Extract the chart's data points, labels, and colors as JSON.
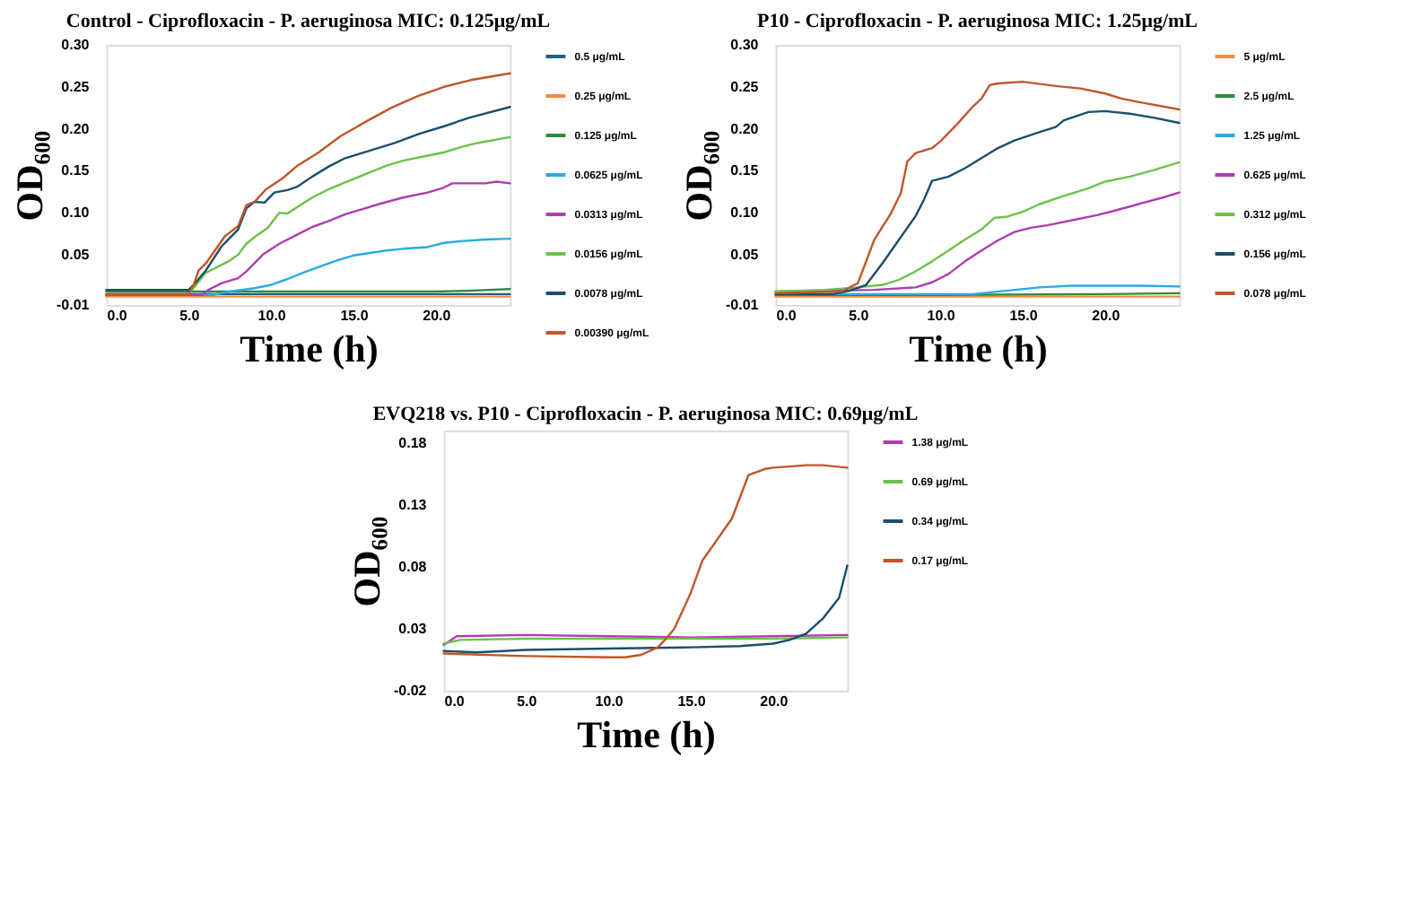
{
  "chart_data": [
    {
      "type": "line",
      "title": "Control - Ciprofloxacin - P. aeruginosa MIC: 0.125μg/mL",
      "xlabel": "Time (h)",
      "ylabel": "OD₆₀₀",
      "xlim": [
        0,
        24.5
      ],
      "ylim": [
        -0.01,
        0.3
      ],
      "xticks": [
        {
          "value": 0,
          "label": "0.0"
        },
        {
          "value": 5,
          "label": "5.0"
        },
        {
          "value": 10,
          "label": "10.0"
        },
        {
          "value": 15,
          "label": "15.0"
        },
        {
          "value": 20,
          "label": "20.0"
        }
      ],
      "yticks": [
        -0.01,
        0.05,
        {
          "value": 0.1,
          "label": "0.10"
        },
        0.15,
        {
          "value": 0.2,
          "label": "0.20"
        },
        0.25,
        {
          "value": 0.3,
          "label": "0.30"
        }
      ],
      "grid": false,
      "legend": "right",
      "line_style": "solid",
      "marker": "none",
      "series": [
        {
          "name": "0.5 μg/mL",
          "color": "#1f5f8b",
          "x": [
            0,
            10,
            20,
            24.5
          ],
          "values": [
            0.003,
            0.003,
            0.003,
            0.003
          ]
        },
        {
          "name": "0.25 μg/mL",
          "color": "#f58a42",
          "x": [
            0,
            10,
            20,
            24.5
          ],
          "values": [
            0.0,
            0.0,
            0.0,
            0.0
          ]
        },
        {
          "name": "0.125 μg/mL",
          "color": "#2e8b3e",
          "x": [
            0,
            10,
            20,
            22,
            24.5
          ],
          "values": [
            0.006,
            0.006,
            0.006,
            0.007,
            0.009
          ]
        },
        {
          "name": "0.0625 μg/mL",
          "color": "#29abe2",
          "x": [
            0,
            6.5,
            7.5,
            9,
            10,
            11,
            12,
            13,
            14,
            15,
            16,
            17,
            18,
            19.5,
            20.5,
            21.5,
            23,
            24.5
          ],
          "values": [
            0.002,
            0.002,
            0.006,
            0.01,
            0.014,
            0.021,
            0.029,
            0.036,
            0.043,
            0.049,
            0.052,
            0.055,
            0.057,
            0.059,
            0.064,
            0.066,
            0.068,
            0.069
          ]
        },
        {
          "name": "0.0313 μg/mL",
          "color": "#b03cb0",
          "x": [
            0,
            5.8,
            6.2,
            7,
            8,
            8.5,
            9.5,
            10.5,
            11.5,
            12.5,
            13.5,
            14.5,
            15.5,
            16.5,
            18,
            19.5,
            20.5,
            21,
            23,
            23.7,
            24.5
          ],
          "values": [
            0.002,
            0.002,
            0.008,
            0.016,
            0.022,
            0.03,
            0.05,
            0.063,
            0.073,
            0.083,
            0.09,
            0.098,
            0.104,
            0.11,
            0.118,
            0.124,
            0.13,
            0.135,
            0.135,
            0.137,
            0.135
          ]
        },
        {
          "name": "0.0156 μg/mL",
          "color": "#6cc24a",
          "x": [
            0,
            5,
            5.5,
            6,
            7,
            7.5,
            8,
            8.5,
            9,
            9.8,
            10.5,
            11,
            11.7,
            12.5,
            13.5,
            14.5,
            16,
            17,
            18,
            19.5,
            20.5,
            21.5,
            22.5,
            24.5
          ],
          "values": [
            0.003,
            0.003,
            0.015,
            0.028,
            0.038,
            0.043,
            0.05,
            0.063,
            0.071,
            0.082,
            0.1,
            0.099,
            0.108,
            0.118,
            0.128,
            0.136,
            0.148,
            0.156,
            0.162,
            0.168,
            0.172,
            0.178,
            0.183,
            0.19
          ]
        },
        {
          "name": "0.0078 μg/mL",
          "color": "#1d4e6b",
          "x": [
            0,
            5,
            5.3,
            6,
            7,
            8,
            8.5,
            9,
            9.6,
            10.2,
            11,
            11.6,
            12.5,
            13.5,
            14.5,
            16,
            17.5,
            19,
            20.5,
            22,
            24.5
          ],
          "values": [
            0.008,
            0.008,
            0.014,
            0.03,
            0.06,
            0.08,
            0.105,
            0.113,
            0.112,
            0.124,
            0.127,
            0.131,
            0.143,
            0.155,
            0.165,
            0.174,
            0.183,
            0.194,
            0.203,
            0.213,
            0.226
          ]
        },
        {
          "name": "0.00390 μg/mL",
          "color": "#c0562a",
          "x": [
            0,
            5,
            5.3,
            5.6,
            6.1,
            7.2,
            8,
            8.5,
            9,
            9.7,
            10.7,
            11.6,
            12.9,
            14.2,
            15.8,
            17.3,
            18.9,
            20.5,
            22.1,
            24.5
          ],
          "values": [
            0.003,
            0.003,
            0.014,
            0.031,
            0.041,
            0.072,
            0.084,
            0.109,
            0.113,
            0.128,
            0.141,
            0.156,
            0.172,
            0.191,
            0.209,
            0.225,
            0.239,
            0.25,
            0.258,
            0.266
          ]
        }
      ]
    },
    {
      "type": "line",
      "title": "P10 - Ciprofloxacin - P. aeruginosa MIC: 1.25μg/mL",
      "xlabel": "Time (h)",
      "ylabel": "OD₆₀₀",
      "xlim": [
        0,
        24.5
      ],
      "ylim": [
        -0.01,
        0.3
      ],
      "xticks": [
        {
          "value": 0,
          "label": "0.0"
        },
        {
          "value": 5,
          "label": "5.0"
        },
        {
          "value": 10,
          "label": "10.0"
        },
        {
          "value": 15,
          "label": "15.0"
        },
        {
          "value": 20,
          "label": "20.0"
        }
      ],
      "yticks": [
        -0.01,
        0.05,
        {
          "value": 0.1,
          "label": "0.10"
        },
        0.15,
        {
          "value": 0.2,
          "label": "0.20"
        },
        0.25,
        {
          "value": 0.3,
          "label": "0.30"
        }
      ],
      "grid": false,
      "legend": "right",
      "line_style": "solid",
      "marker": "none",
      "series": [
        {
          "name": "5 μg/mL",
          "color": "#f58a42",
          "x": [
            0,
            10,
            20,
            24.5
          ],
          "values": [
            0.0,
            0.0,
            0.0,
            0.0
          ]
        },
        {
          "name": "2.5 μg/mL",
          "color": "#2e8b3e",
          "x": [
            0,
            10,
            20,
            24.5
          ],
          "values": [
            0.002,
            0.002,
            0.003,
            0.004
          ]
        },
        {
          "name": "1.25 μg/mL",
          "color": "#29abe2",
          "x": [
            0,
            12,
            14,
            16,
            18,
            20,
            22,
            24.5
          ],
          "values": [
            0.003,
            0.003,
            0.007,
            0.011,
            0.013,
            0.013,
            0.013,
            0.012
          ]
        },
        {
          "name": "0.625 μg/mL",
          "color": "#b03cb0",
          "x": [
            0,
            6,
            8.5,
            9.5,
            10.5,
            11.5,
            12.5,
            13.5,
            14.5,
            15.5,
            16.5,
            18,
            19.5,
            20.5,
            22,
            23.5,
            24.5
          ],
          "values": [
            0.006,
            0.008,
            0.011,
            0.017,
            0.027,
            0.042,
            0.055,
            0.067,
            0.077,
            0.082,
            0.085,
            0.091,
            0.097,
            0.102,
            0.11,
            0.118,
            0.124
          ]
        },
        {
          "name": "0.312 μg/mL",
          "color": "#6cc24a",
          "x": [
            0,
            3,
            5,
            6.5,
            7.5,
            8.5,
            9.5,
            10.5,
            11.5,
            12.5,
            13.3,
            14,
            15,
            16,
            17.5,
            19,
            20,
            21.5,
            23,
            24.5
          ],
          "values": [
            0.006,
            0.008,
            0.011,
            0.014,
            0.02,
            0.03,
            0.042,
            0.055,
            0.068,
            0.08,
            0.094,
            0.095,
            0.101,
            0.11,
            0.12,
            0.129,
            0.137,
            0.143,
            0.151,
            0.16
          ]
        },
        {
          "name": "0.156 μg/mL",
          "color": "#1d4e6b",
          "x": [
            0,
            3.5,
            4.5,
            5.5,
            6.5,
            7.5,
            8.5,
            9,
            9.5,
            10.5,
            11.5,
            12.5,
            13.5,
            14.5,
            16,
            17,
            17.5,
            19,
            20,
            21.5,
            23,
            24.5
          ],
          "values": [
            0.003,
            0.003,
            0.007,
            0.014,
            0.04,
            0.068,
            0.096,
            0.115,
            0.138,
            0.143,
            0.153,
            0.165,
            0.177,
            0.186,
            0.196,
            0.202,
            0.21,
            0.22,
            0.221,
            0.218,
            0.213,
            0.207
          ]
        },
        {
          "name": "0.078 μg/mL",
          "color": "#c0562a",
          "x": [
            0,
            4,
            5,
            6,
            7,
            7.6,
            8,
            8.5,
            9.5,
            10,
            11,
            12,
            12.5,
            13,
            13.5,
            15,
            17,
            18.5,
            20,
            21,
            22,
            24.5
          ],
          "values": [
            0.004,
            0.006,
            0.016,
            0.068,
            0.099,
            0.123,
            0.161,
            0.171,
            0.177,
            0.185,
            0.205,
            0.227,
            0.236,
            0.252,
            0.254,
            0.256,
            0.251,
            0.248,
            0.242,
            0.236,
            0.232,
            0.223
          ]
        }
      ]
    },
    {
      "type": "line",
      "title": "EVQ218 vs. P10 - Ciprofloxacin - P. aeruginosa MIC: 0.69μg/mL",
      "xlabel": "Time (h)",
      "ylabel": "OD₆₀₀",
      "xlim": [
        0,
        24.5
      ],
      "ylim": [
        -0.02,
        0.19
      ],
      "xticks": [
        {
          "value": 0,
          "label": "0.0"
        },
        {
          "value": 5,
          "label": "5.0"
        },
        {
          "value": 10,
          "label": "10.0"
        },
        {
          "value": 15,
          "label": "15.0"
        },
        {
          "value": 20,
          "label": "20.0"
        }
      ],
      "yticks": [
        -0.02,
        0.03,
        0.08,
        0.13,
        0.18
      ],
      "grid": false,
      "legend": "right",
      "line_style": "solid",
      "marker": "none",
      "series": [
        {
          "name": "1.38 μg/mL",
          "color": "#b03cb0",
          "x": [
            0,
            0.8,
            5,
            10,
            15,
            20,
            24.5
          ],
          "values": [
            0.017,
            0.024,
            0.025,
            0.024,
            0.023,
            0.024,
            0.025
          ]
        },
        {
          "name": "0.69 μg/mL",
          "color": "#6cc24a",
          "x": [
            0,
            1,
            5,
            10,
            20,
            24.5
          ],
          "values": [
            0.018,
            0.021,
            0.022,
            0.022,
            0.022,
            0.023
          ]
        },
        {
          "name": "0.34 μg/mL",
          "color": "#1d4e6b",
          "x": [
            0,
            2,
            5,
            10,
            15,
            18,
            20,
            21,
            22,
            23,
            24,
            24.5
          ],
          "values": [
            0.012,
            0.011,
            0.013,
            0.014,
            0.015,
            0.016,
            0.018,
            0.021,
            0.026,
            0.038,
            0.055,
            0.081
          ]
        },
        {
          "name": "0.17 μg/mL",
          "color": "#c0562a",
          "x": [
            0,
            5,
            10,
            11,
            12,
            13,
            13.5,
            14,
            15,
            15.7,
            16.5,
            17.5,
            18.5,
            19.5,
            20,
            22,
            23,
            24.5
          ],
          "values": [
            0.01,
            0.008,
            0.007,
            0.007,
            0.009,
            0.015,
            0.022,
            0.03,
            0.059,
            0.085,
            0.1,
            0.119,
            0.154,
            0.159,
            0.16,
            0.162,
            0.162,
            0.16
          ]
        }
      ]
    }
  ]
}
